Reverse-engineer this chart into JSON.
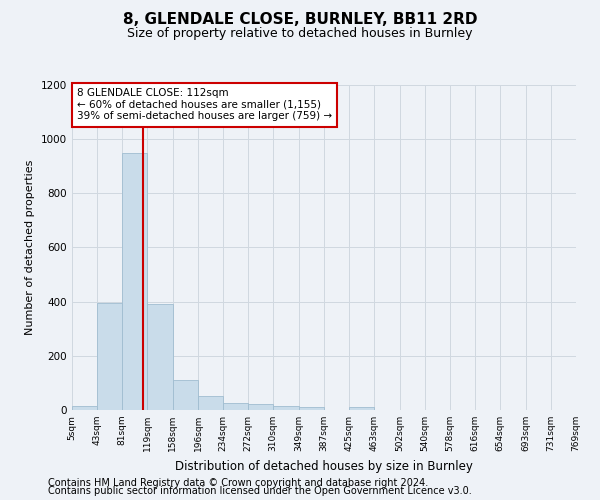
{
  "title1": "8, GLENDALE CLOSE, BURNLEY, BB11 2RD",
  "title2": "Size of property relative to detached houses in Burnley",
  "xlabel": "Distribution of detached houses by size in Burnley",
  "ylabel": "Number of detached properties",
  "footer1": "Contains HM Land Registry data © Crown copyright and database right 2024.",
  "footer2": "Contains public sector information licensed under the Open Government Licence v3.0.",
  "annotation_line1": "8 GLENDALE CLOSE: 112sqm",
  "annotation_line2": "← 60% of detached houses are smaller (1,155)",
  "annotation_line3": "39% of semi-detached houses are larger (759) →",
  "bar_edges": [
    5,
    43,
    81,
    119,
    158,
    196,
    234,
    272,
    310,
    349,
    387,
    425,
    463,
    502,
    540,
    578,
    616,
    654,
    693,
    731,
    769
  ],
  "bar_heights": [
    15,
    395,
    950,
    390,
    110,
    52,
    25,
    22,
    15,
    12,
    0,
    12,
    0,
    0,
    0,
    0,
    0,
    0,
    0,
    0
  ],
  "bar_color": "#c9dcea",
  "bar_edge_color": "#a0bdd0",
  "property_line_x": 112,
  "ylim": [
    0,
    1200
  ],
  "yticks": [
    0,
    200,
    400,
    600,
    800,
    1000,
    1200
  ],
  "grid_color": "#d0d8e0",
  "background_color": "#eef2f7",
  "ax_background_color": "#eef2f7",
  "annotation_box_color": "#ffffff",
  "annotation_box_edge": "#cc0000",
  "property_line_color": "#cc0000",
  "title1_fontsize": 11,
  "title2_fontsize": 9,
  "xlabel_fontsize": 8.5,
  "ylabel_fontsize": 8,
  "annotation_fontsize": 7.5,
  "tick_fontsize": 6.5,
  "footer_fontsize": 7
}
